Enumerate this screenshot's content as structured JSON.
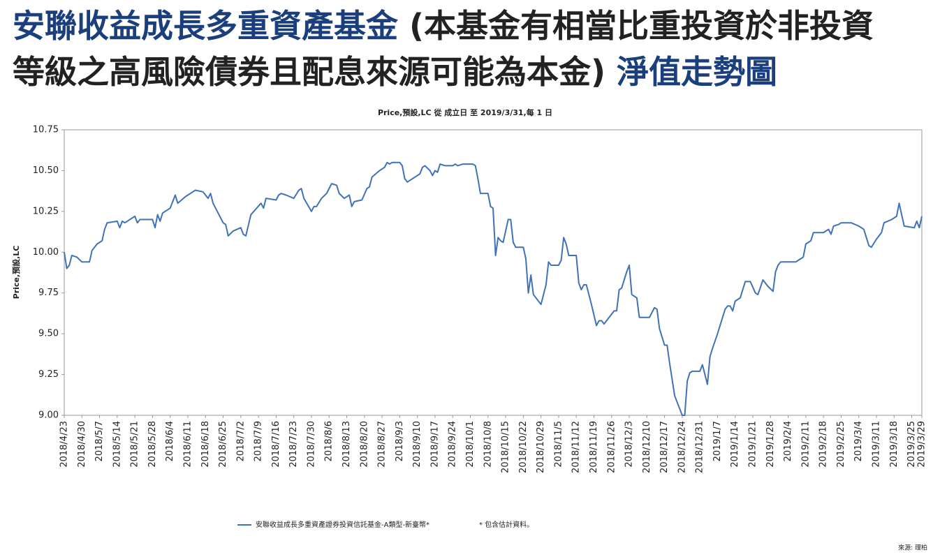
{
  "header": {
    "title_parts": [
      "安聯收益成長多重資產基金",
      "(本基金有相當比重投資於非投資",
      "等級之高風險債券且配息來源可能為本金)",
      "淨值走勢圖"
    ]
  },
  "chart_data": {
    "type": "line",
    "title": "Price,預設,LC 從 成立日 至 2019/3/31,每 1 日",
    "y_label": "Price,預設,LC",
    "note": "* 包含估計資料。",
    "source": "來源: 理柏",
    "xlim": [
      "2018/4/23",
      "2019/3/29"
    ],
    "xticks": [
      "2018/4/23",
      "2018/4/30",
      "2018/5/7",
      "2018/5/14",
      "2018/5/21",
      "2018/5/28",
      "2018/6/4",
      "2018/6/11",
      "2018/6/18",
      "2018/6/25",
      "2018/7/2",
      "2018/7/9",
      "2018/7/16",
      "2018/7/23",
      "2018/7/30",
      "2018/8/6",
      "2018/8/13",
      "2018/8/20",
      "2018/8/27",
      "2018/9/3",
      "2018/9/10",
      "2018/9/17",
      "2018/9/24",
      "2018/10/1",
      "2018/10/8",
      "2018/10/15",
      "2018/10/22",
      "2018/10/29",
      "2018/11/5",
      "2018/11/12",
      "2018/11/19",
      "2018/11/26",
      "2018/12/3",
      "2018/12/10",
      "2018/12/17",
      "2018/12/24",
      "2018/12/31",
      "2019/1/7",
      "2019/1/14",
      "2019/1/21",
      "2019/1/28",
      "2019/2/4",
      "2019/2/11",
      "2019/2/18",
      "2019/2/25",
      "2019/3/4",
      "2019/3/11",
      "2019/3/18",
      "2019/3/25",
      "2019/3/29"
    ],
    "ylim": [
      9.0,
      10.75
    ],
    "yticks": [
      {
        "value": 9.0,
        "label": "9.00"
      },
      9.25,
      {
        "value": 9.5,
        "label": "9.50"
      },
      9.75,
      {
        "value": 10.0,
        "label": "10.00"
      },
      10.25,
      {
        "value": 10.5,
        "label": "10.50"
      },
      10.75
    ],
    "grid": false,
    "x": [
      "2018/4/23",
      "2018/4/24",
      "2018/4/25",
      "2018/4/26",
      "2018/4/28",
      "2018/4/30",
      "2018/5/3",
      "2018/5/4",
      "2018/5/6",
      "2018/5/8",
      "2018/5/9",
      "2018/5/10",
      "2018/5/14",
      "2018/5/15",
      "2018/5/16",
      "2018/5/17",
      "2018/5/19",
      "2018/5/21",
      "2018/5/22",
      "2018/5/23",
      "2018/5/28",
      "2018/5/29",
      "2018/5/30",
      "2018/5/31",
      "2018/6/1",
      "2018/6/4",
      "2018/6/6",
      "2018/6/7",
      "2018/6/10",
      "2018/6/11",
      "2018/6/14",
      "2018/6/17",
      "2018/6/19",
      "2018/6/20",
      "2018/6/21",
      "2018/6/25",
      "2018/6/26",
      "2018/6/27",
      "2018/6/29",
      "2018/7/2",
      "2018/7/3",
      "2018/7/4",
      "2018/7/6",
      "2018/7/10",
      "2018/7/11",
      "2018/7/12",
      "2018/7/16",
      "2018/7/17",
      "2018/7/18",
      "2018/7/20",
      "2018/7/23",
      "2018/7/25",
      "2018/7/26",
      "2018/7/27",
      "2018/7/30",
      "2018/7/31",
      "2018/8/1",
      "2018/8/3",
      "2018/8/5",
      "2018/8/7",
      "2018/8/9",
      "2018/8/10",
      "2018/8/12",
      "2018/8/14",
      "2018/8/15",
      "2018/8/16",
      "2018/8/19",
      "2018/8/21",
      "2018/8/22",
      "2018/8/23",
      "2018/8/26",
      "2018/8/28",
      "2018/8/29",
      "2018/8/30",
      "2018/8/31",
      "2018/9/3",
      "2018/9/4",
      "2018/9/5",
      "2018/9/6",
      "2018/9/9",
      "2018/9/11",
      "2018/9/12",
      "2018/9/13",
      "2018/9/15",
      "2018/9/16",
      "2018/9/17",
      "2018/9/18",
      "2018/9/19",
      "2018/9/21",
      "2018/9/24",
      "2018/9/25",
      "2018/9/26",
      "2018/9/28",
      "2018/10/2",
      "2018/10/3",
      "2018/10/4",
      "2018/10/5",
      "2018/10/8",
      "2018/10/9",
      "2018/10/10",
      "2018/10/11",
      "2018/10/12",
      "2018/10/13",
      "2018/10/14",
      "2018/10/16",
      "2018/10/17",
      "2018/10/18",
      "2018/10/19",
      "2018/10/22",
      "2018/10/23",
      "2018/10/24",
      "2018/10/25",
      "2018/10/26",
      "2018/10/29",
      "2018/10/31",
      "2018/11/1",
      "2018/11/2",
      "2018/11/5",
      "2018/11/6",
      "2018/11/7",
      "2018/11/8",
      "2018/11/9",
      "2018/11/12",
      "2018/11/13",
      "2018/11/14",
      "2018/11/15",
      "2018/11/16",
      "2018/11/18",
      "2018/11/20",
      "2018/11/21",
      "2018/11/22",
      "2018/11/23",
      "2018/11/26",
      "2018/11/27",
      "2018/11/28",
      "2018/11/29",
      "2018/11/30",
      "2018/12/2",
      "2018/12/3",
      "2018/12/4",
      "2018/12/6",
      "2018/12/7",
      "2018/12/11",
      "2018/12/12",
      "2018/12/13",
      "2018/12/14",
      "2018/12/15",
      "2018/12/16",
      "2018/12/17",
      "2018/12/18",
      "2018/12/19",
      "2018/12/21",
      "2018/12/24",
      "2018/12/25",
      "2018/12/26",
      "2018/12/27",
      "2018/12/28",
      "2018/12/31",
      "2019/1/1",
      "2019/1/3",
      "2019/1/4",
      "2019/1/5",
      "2019/1/7",
      "2019/1/8",
      "2019/1/10",
      "2019/1/11",
      "2019/1/12",
      "2019/1/13",
      "2019/1/14",
      "2019/1/16",
      "2019/1/18",
      "2019/1/20",
      "2019/1/22",
      "2019/1/23",
      "2019/1/25",
      "2019/1/27",
      "2019/1/29",
      "2019/1/30",
      "2019/1/31",
      "2019/2/1",
      "2019/2/7",
      "2019/2/9",
      "2019/2/10",
      "2019/2/11",
      "2019/2/13",
      "2019/2/14",
      "2019/2/18",
      "2019/2/20",
      "2019/2/21",
      "2019/2/22",
      "2019/2/24",
      "2019/2/25",
      "2019/3/1",
      "2019/3/4",
      "2019/3/6",
      "2019/3/8",
      "2019/3/9",
      "2019/3/11",
      "2019/3/13",
      "2019/3/14",
      "2019/3/17",
      "2019/3/19",
      "2019/3/20",
      "2019/3/22",
      "2019/3/26",
      "2019/3/27",
      "2019/3/28",
      "2019/3/29"
    ],
    "series": [
      {
        "name": "安聯收益成長多重資產證券投資信託基金-A類型-新臺幣*",
        "color": "#3f72b8",
        "values": [
          10.0,
          9.9,
          9.92,
          9.98,
          9.97,
          9.94,
          9.94,
          10.01,
          10.05,
          10.07,
          10.14,
          10.18,
          10.19,
          10.15,
          10.19,
          10.18,
          10.2,
          10.22,
          10.18,
          10.2,
          10.2,
          10.15,
          10.23,
          10.19,
          10.24,
          10.27,
          10.35,
          10.3,
          10.34,
          10.35,
          10.38,
          10.37,
          10.33,
          10.36,
          10.3,
          10.18,
          10.17,
          10.1,
          10.13,
          10.15,
          10.11,
          10.1,
          10.23,
          10.3,
          10.27,
          10.33,
          10.32,
          10.35,
          10.36,
          10.35,
          10.33,
          10.38,
          10.39,
          10.33,
          10.25,
          10.28,
          10.28,
          10.33,
          10.36,
          10.42,
          10.41,
          10.36,
          10.33,
          10.35,
          10.28,
          10.31,
          10.32,
          10.39,
          10.4,
          10.46,
          10.5,
          10.52,
          10.55,
          10.54,
          10.55,
          10.55,
          10.53,
          10.45,
          10.43,
          10.46,
          10.48,
          10.52,
          10.53,
          10.5,
          10.47,
          10.5,
          10.49,
          10.54,
          10.53,
          10.53,
          10.54,
          10.53,
          10.54,
          10.54,
          10.53,
          10.45,
          10.36,
          10.36,
          10.28,
          10.27,
          9.98,
          10.09,
          10.07,
          10.06,
          10.2,
          10.2,
          10.06,
          10.03,
          10.03,
          9.96,
          9.75,
          9.86,
          9.74,
          9.68,
          9.8,
          9.94,
          9.92,
          9.92,
          9.95,
          10.09,
          10.05,
          9.98,
          9.98,
          9.81,
          9.77,
          9.8,
          9.8,
          9.68,
          9.55,
          9.58,
          9.58,
          9.56,
          9.62,
          9.64,
          9.64,
          9.77,
          9.78,
          9.88,
          9.92,
          9.74,
          9.72,
          9.6,
          9.6,
          9.63,
          9.66,
          9.65,
          9.53,
          9.48,
          9.43,
          9.43,
          9.32,
          9.12,
          9.0,
          9.0,
          9.21,
          9.26,
          9.27,
          9.27,
          9.31,
          9.19,
          9.36,
          9.41,
          9.5,
          9.55,
          9.65,
          9.67,
          9.67,
          9.64,
          9.7,
          9.72,
          9.82,
          9.82,
          9.75,
          9.74,
          9.83,
          9.79,
          9.76,
          9.88,
          9.92,
          9.94,
          9.94,
          9.96,
          9.97,
          10.05,
          10.07,
          10.12,
          10.12,
          10.14,
          10.11,
          10.16,
          10.17,
          10.18,
          10.18,
          10.16,
          10.14,
          10.04,
          10.03,
          10.08,
          10.12,
          10.18,
          10.2,
          10.22,
          10.3,
          10.16,
          10.15,
          10.19,
          10.15,
          10.22
        ]
      }
    ]
  }
}
